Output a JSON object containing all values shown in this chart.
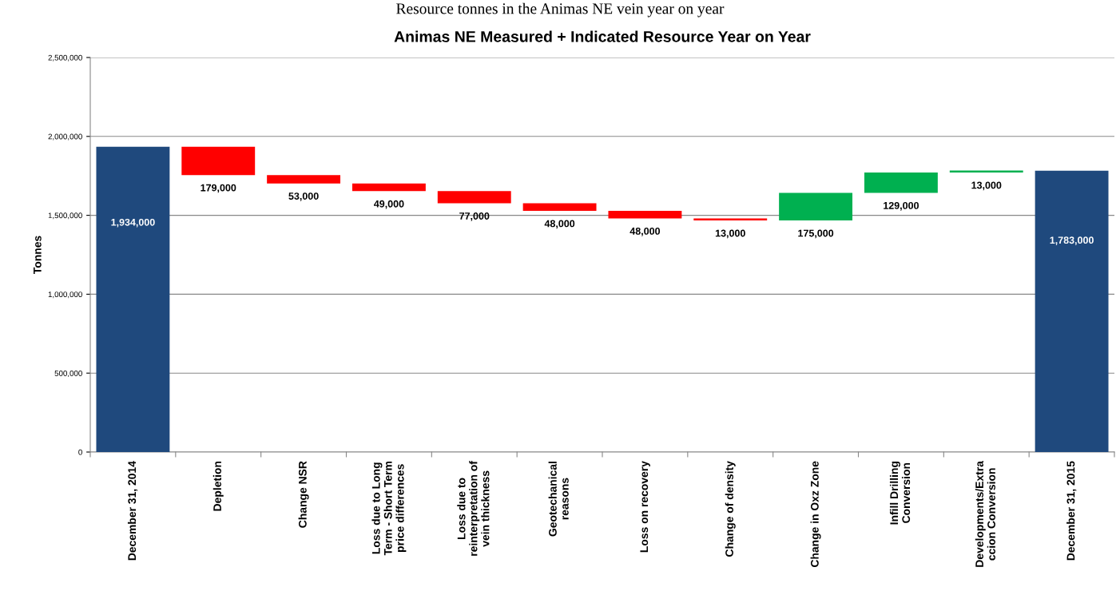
{
  "chart_data": {
    "type": "bar",
    "title": "Animas NE Measured + Indicated Resource Year on Year",
    "ylabel": "Tonnes",
    "annotations": [
      "Resource tonnes in the Animas NE vein year on year"
    ],
    "categories": [
      "December 31, 2014",
      "Depletion",
      "Change NSR",
      "Loss due to Long\nTerm - Short Term\nprice differences",
      "Loss due to\nreinterpretation of\nvein thickness",
      "Geotechanical\nreasons",
      "Loss on recovery",
      "Change of density",
      "Change in Oxz Zone",
      "Infill Drilling\nConversion",
      "Developments/Extra\nccion Conversion",
      "December 31, 2015"
    ],
    "values": [
      1934000,
      -179000,
      -53000,
      -49000,
      -77000,
      -48000,
      -48000,
      -13000,
      175000,
      129000,
      13000,
      1783000
    ],
    "base": [
      0,
      1934000,
      1755000,
      1702000,
      1653000,
      1576000,
      1528000,
      1480000,
      1467000,
      1642000,
      1771000,
      0
    ],
    "colors": [
      "#1f497d",
      "#ff0000",
      "#ff0000",
      "#ff0000",
      "#ff0000",
      "#ff0000",
      "#ff0000",
      "#ff0000",
      "#00b050",
      "#00b050",
      "#00b050",
      "#1f497d"
    ],
    "value_labels": [
      "1,934,000",
      "179,000",
      "53,000",
      "49,000",
      "77,000",
      "48,000",
      "48,000",
      "13,000",
      "175,000",
      "129,000",
      "13,000",
      "1,783,000"
    ],
    "ylim": [
      0,
      2500000
    ],
    "yticks": [
      0,
      {
        "value": 500000,
        "label": "500,000"
      },
      {
        "value": 1000000,
        "label": "1,000,000"
      },
      {
        "value": 1500000,
        "label": "1,500,000"
      },
      {
        "value": 2000000,
        "label": "2,000,000"
      },
      {
        "value": 2500000,
        "label": "2,500,000"
      }
    ],
    "grid": "y",
    "legend": false
  }
}
